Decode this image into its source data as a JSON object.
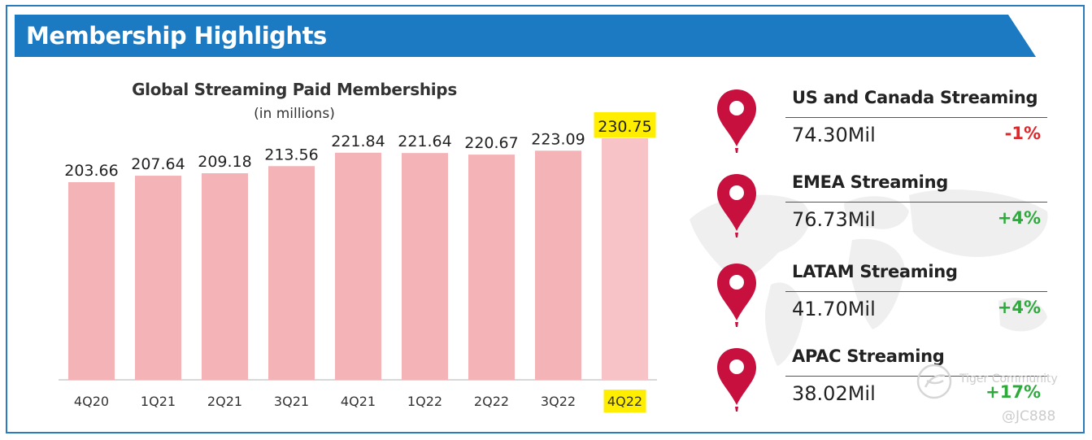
{
  "banner": {
    "title": "Membership Highlights"
  },
  "chart_data": {
    "type": "bar",
    "title": "Global Streaming Paid Memberships",
    "subtitle": "(in millions)",
    "categories": [
      "4Q20",
      "1Q21",
      "2Q21",
      "3Q21",
      "4Q21",
      "1Q22",
      "2Q22",
      "3Q22",
      "4Q22"
    ],
    "values": [
      203.66,
      207.64,
      209.18,
      213.56,
      221.84,
      221.64,
      220.67,
      223.09,
      230.75
    ],
    "value_labels": [
      "203.66",
      "207.64",
      "209.18",
      "213.56",
      "221.84",
      "221.64",
      "220.67",
      "223.09",
      "230.75"
    ],
    "highlighted_category": "4Q22",
    "xlabel": "",
    "ylabel": "",
    "grid": false,
    "colors": {
      "bar": "#f4b4b7",
      "bar_highlight": "#f7c3c6",
      "highlight": "#ffee00"
    }
  },
  "regions": [
    {
      "name": "US and Canada Streaming",
      "value": "74.30Mil",
      "change": "-1%",
      "trend": "negative"
    },
    {
      "name": "EMEA Streaming",
      "value": "76.73Mil",
      "change": "+4%",
      "trend": "positive"
    },
    {
      "name": "LATAM Streaming",
      "value": "41.70Mil",
      "change": "+4%",
      "trend": "positive"
    },
    {
      "name": "APAC Streaming",
      "value": "38.02Mil",
      "change": "+17%",
      "trend": "positive"
    }
  ],
  "watermark": {
    "community": "Tiger Community",
    "handle": "@JC888"
  },
  "icons": {
    "region_marker": "map-pin-icon",
    "watermark_logo": "tiger-logo-icon",
    "background": "world-map-icon"
  },
  "colors": {
    "banner": "#1c7ac2",
    "frame": "#2b7bbf",
    "pin": "#c8103e",
    "negative": "#e0262b",
    "positive": "#2eaa3c"
  }
}
